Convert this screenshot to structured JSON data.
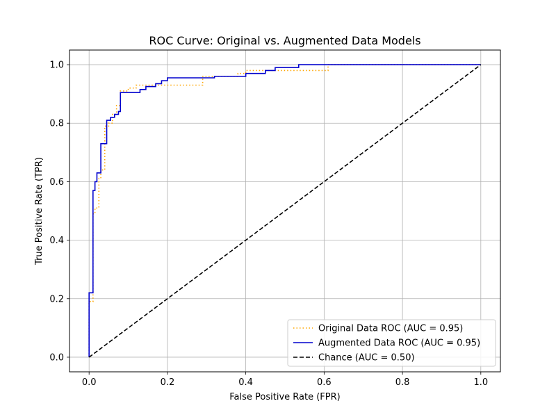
{
  "chart_data": {
    "type": "line",
    "title": "ROC Curve: Original vs. Augmented Data Models",
    "xlabel": "False Positive Rate (FPR)",
    "ylabel": "True Positive Rate (TPR)",
    "xlim": [
      -0.05,
      1.05
    ],
    "ylim": [
      -0.05,
      1.05
    ],
    "xticks": [
      0.0,
      0.2,
      0.4,
      0.6,
      0.8,
      1.0
    ],
    "yticks": [
      0.0,
      0.2,
      0.4,
      0.6,
      0.8,
      1.0
    ],
    "xtick_labels": [
      "0.0",
      "0.2",
      "0.4",
      "0.6",
      "0.8",
      "1.0"
    ],
    "ytick_labels": [
      "0.0",
      "0.2",
      "0.4",
      "0.6",
      "0.8",
      "1.0"
    ],
    "grid": true,
    "legend_position": "lower-right",
    "series": [
      {
        "name": "Original Data ROC (AUC = 0.95)",
        "color": "#ffa500",
        "style": "dotted",
        "x": [
          0.0,
          0.0,
          0.01,
          0.01,
          0.015,
          0.015,
          0.025,
          0.025,
          0.03,
          0.03,
          0.04,
          0.04,
          0.05,
          0.05,
          0.06,
          0.06,
          0.07,
          0.07,
          0.08,
          0.08,
          0.1,
          0.1,
          0.12,
          0.12,
          0.2,
          0.2,
          0.29,
          0.29,
          0.32,
          0.32,
          0.38,
          0.38,
          0.4,
          0.4,
          0.61,
          0.61,
          1.0
        ],
        "y": [
          0.0,
          0.19,
          0.19,
          0.49,
          0.49,
          0.51,
          0.51,
          0.61,
          0.61,
          0.64,
          0.64,
          0.79,
          0.79,
          0.8,
          0.8,
          0.83,
          0.83,
          0.86,
          0.86,
          0.91,
          0.91,
          0.92,
          0.92,
          0.93,
          0.93,
          0.93,
          0.93,
          0.96,
          0.96,
          0.96,
          0.96,
          0.97,
          0.97,
          0.98,
          0.98,
          1.0,
          1.0
        ]
      },
      {
        "name": "Augmented Data ROC (AUC = 0.95)",
        "color": "#0000cd",
        "style": "solid",
        "x": [
          0.0,
          0.0,
          0.01,
          0.01,
          0.015,
          0.015,
          0.02,
          0.02,
          0.03,
          0.03,
          0.045,
          0.045,
          0.055,
          0.055,
          0.065,
          0.065,
          0.075,
          0.075,
          0.08,
          0.08,
          0.13,
          0.13,
          0.145,
          0.145,
          0.17,
          0.17,
          0.185,
          0.185,
          0.2,
          0.2,
          0.32,
          0.32,
          0.4,
          0.4,
          0.45,
          0.45,
          0.475,
          0.475,
          0.535,
          0.535,
          1.0
        ],
        "y": [
          0.0,
          0.22,
          0.22,
          0.57,
          0.57,
          0.6,
          0.6,
          0.63,
          0.63,
          0.73,
          0.73,
          0.81,
          0.81,
          0.82,
          0.82,
          0.83,
          0.83,
          0.84,
          0.84,
          0.905,
          0.905,
          0.915,
          0.915,
          0.925,
          0.925,
          0.935,
          0.935,
          0.945,
          0.945,
          0.955,
          0.955,
          0.96,
          0.96,
          0.97,
          0.97,
          0.98,
          0.98,
          0.99,
          0.99,
          1.0,
          1.0
        ]
      },
      {
        "name": "Chance (AUC = 0.50)",
        "color": "#000000",
        "style": "dashed",
        "x": [
          0.0,
          1.0
        ],
        "y": [
          0.0,
          1.0
        ]
      }
    ]
  }
}
